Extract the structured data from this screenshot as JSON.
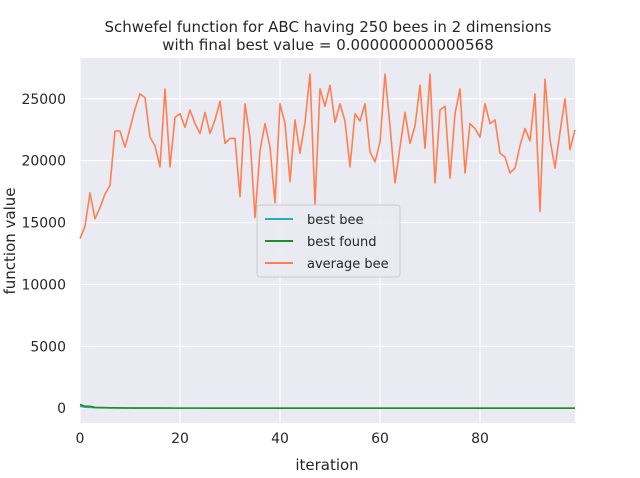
{
  "chart_data": {
    "type": "line",
    "title_line1": "Schwefel function for ABC having 250 bees in 2 dimensions",
    "title_line2": "with final best value = 0.000000000000568",
    "xlabel": "iteration",
    "ylabel": "function value",
    "xlim": [
      0,
      99
    ],
    "ylim": [
      -1200,
      28300
    ],
    "xticks": [
      0,
      20,
      40,
      60,
      80
    ],
    "yticks": [
      0,
      5000,
      10000,
      15000,
      20000,
      25000
    ],
    "grid": true,
    "legend_placement": "center",
    "x": [
      0,
      1,
      2,
      3,
      4,
      5,
      6,
      7,
      8,
      9,
      10,
      11,
      12,
      13,
      14,
      15,
      16,
      17,
      18,
      19,
      20,
      21,
      22,
      23,
      24,
      25,
      26,
      27,
      28,
      29,
      30,
      31,
      32,
      33,
      34,
      35,
      36,
      37,
      38,
      39,
      40,
      41,
      42,
      43,
      44,
      45,
      46,
      47,
      48,
      49,
      50,
      51,
      52,
      53,
      54,
      55,
      56,
      57,
      58,
      59,
      60,
      61,
      62,
      63,
      64,
      65,
      66,
      67,
      68,
      69,
      70,
      71,
      72,
      73,
      74,
      75,
      76,
      77,
      78,
      79,
      80,
      81,
      82,
      83,
      84,
      85,
      86,
      87,
      88,
      89,
      90,
      91,
      92,
      93,
      94,
      95,
      96,
      97,
      98,
      99
    ],
    "series": [
      {
        "name": "best bee",
        "color": "#2ab0b0",
        "values": [
          150,
          80,
          60,
          40,
          30,
          25,
          20,
          15,
          12,
          10,
          8,
          7,
          6,
          5,
          5,
          4,
          4,
          3,
          3,
          3,
          2,
          2,
          2,
          2,
          2,
          1,
          1,
          1,
          1,
          1,
          1,
          1,
          1,
          1,
          1,
          1,
          1,
          1,
          1,
          1,
          1,
          1,
          1,
          1,
          1,
          1,
          1,
          1,
          1,
          1,
          1,
          1,
          1,
          1,
          1,
          1,
          1,
          1,
          1,
          1,
          1,
          1,
          1,
          1,
          1,
          1,
          1,
          1,
          1,
          1,
          1,
          1,
          1,
          1,
          1,
          1,
          1,
          1,
          1,
          1,
          1,
          1,
          1,
          1,
          1,
          1,
          1,
          1,
          1,
          1,
          1,
          1,
          1,
          1,
          1,
          1,
          1,
          1,
          1,
          0
        ]
      },
      {
        "name": "best found",
        "color": "#228b22",
        "values": [
          300,
          150,
          150,
          60,
          50,
          40,
          30,
          25,
          20,
          15,
          12,
          10,
          8,
          7,
          6,
          5,
          5,
          4,
          4,
          3,
          3,
          3,
          2,
          2,
          2,
          2,
          1,
          1,
          1,
          1,
          1,
          1,
          1,
          1,
          1,
          1,
          1,
          1,
          1,
          1,
          1,
          1,
          1,
          1,
          1,
          1,
          1,
          1,
          1,
          1,
          1,
          1,
          1,
          1,
          1,
          1,
          1,
          1,
          1,
          1,
          1,
          1,
          1,
          1,
          1,
          1,
          1,
          1,
          1,
          1,
          1,
          1,
          1,
          1,
          1,
          1,
          1,
          1,
          1,
          1,
          1,
          1,
          1,
          1,
          1,
          1,
          1,
          1,
          1,
          1,
          1,
          1,
          1,
          1,
          1,
          1,
          1,
          1,
          1,
          0
        ]
      },
      {
        "name": "average bee",
        "color": "#ff7f50",
        "values": [
          13700,
          14700,
          17400,
          15300,
          16200,
          17300,
          18000,
          22400,
          22400,
          21100,
          22600,
          24200,
          25400,
          25100,
          21900,
          21200,
          19500,
          25800,
          19500,
          23500,
          23800,
          22700,
          24100,
          23000,
          22200,
          23900,
          22200,
          23300,
          24800,
          21400,
          21800,
          21800,
          17100,
          24600,
          21900,
          15400,
          20800,
          23000,
          21100,
          16600,
          24600,
          23000,
          18300,
          23300,
          20600,
          23100,
          27000,
          16500,
          25800,
          24400,
          26100,
          23100,
          24600,
          23200,
          19500,
          23800,
          23200,
          24600,
          20700,
          19900,
          21500,
          27000,
          22800,
          18200,
          21100,
          23900,
          21400,
          22800,
          26100,
          21000,
          27000,
          18200,
          24100,
          24400,
          18600,
          23800,
          25800,
          19000,
          23000,
          22600,
          21900,
          24600,
          23000,
          23300,
          20600,
          20300,
          19000,
          19400,
          21200,
          22600,
          21600,
          25400,
          15900,
          26600,
          21700,
          19400,
          22300,
          25000,
          20900,
          22500
        ]
      }
    ]
  }
}
